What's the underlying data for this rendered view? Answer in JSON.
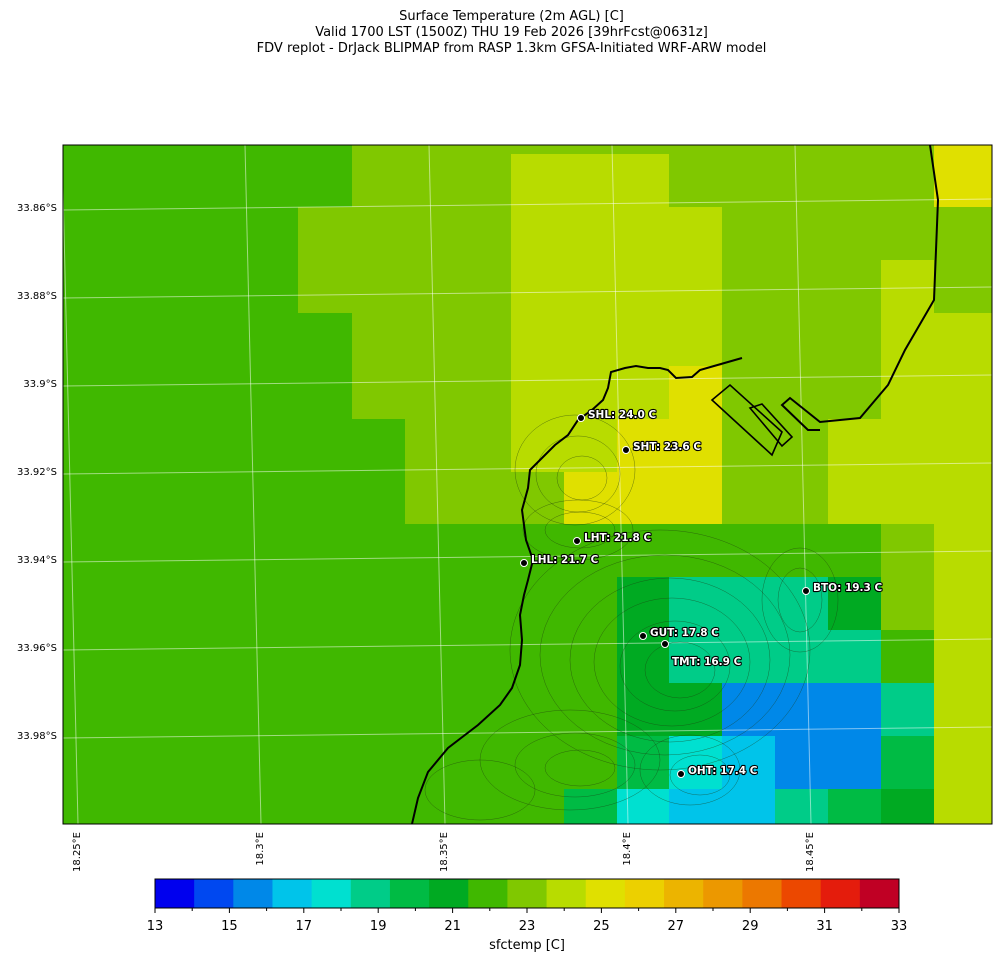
{
  "title": {
    "line1": "Surface Temperature (2m AGL) [C]",
    "line2": "Valid 1700 LST (1500Z) THU 19 Feb 2026 [39hrFcst@0631z]",
    "line3": "FDV replot - DrJack BLIPMAP from RASP 1.3km GFSA-Initiated WRF-ARW model"
  },
  "axes": {
    "lat_labels": [
      "33.86°S",
      "33.88°S",
      "33.9°S",
      "33.92°S",
      "33.94°S",
      "33.96°S",
      "33.98°S"
    ],
    "lon_labels": [
      "18.25°E",
      "18.3°E",
      "18.35°E",
      "18.4°E",
      "18.45°E"
    ]
  },
  "colorbar": {
    "label": "sfctemp [C]",
    "ticks": [
      "13",
      "15",
      "17",
      "19",
      "21",
      "23",
      "25",
      "27",
      "29",
      "31",
      "33"
    ],
    "colors": [
      "#0000ee",
      "#0048f0",
      "#0088e8",
      "#00c4ea",
      "#00e0d0",
      "#00cc88",
      "#00bb44",
      "#00aa22",
      "#40b800",
      "#80c800",
      "#b8dc00",
      "#e0e000",
      "#ecd000",
      "#ecb400",
      "#ec9800",
      "#ec7800",
      "#ec4800",
      "#e41c0c",
      "#c00024"
    ]
  },
  "stations": [
    {
      "id": "SHL",
      "text": "SHL: 24.0 C"
    },
    {
      "id": "SHT",
      "text": "SHT: 23.6 C"
    },
    {
      "id": "LHT",
      "text": "LHT: 21.8 C"
    },
    {
      "id": "LHL",
      "text": "LHL: 21.7 C"
    },
    {
      "id": "BTO",
      "text": "BTO: 19.3 C"
    },
    {
      "id": "GUT",
      "text": "GUT: 17.8 C"
    },
    {
      "id": "TMT",
      "text": "TMT: 16.9 C"
    },
    {
      "id": "OHT",
      "text": "OHT: 17.4 C"
    }
  ]
}
